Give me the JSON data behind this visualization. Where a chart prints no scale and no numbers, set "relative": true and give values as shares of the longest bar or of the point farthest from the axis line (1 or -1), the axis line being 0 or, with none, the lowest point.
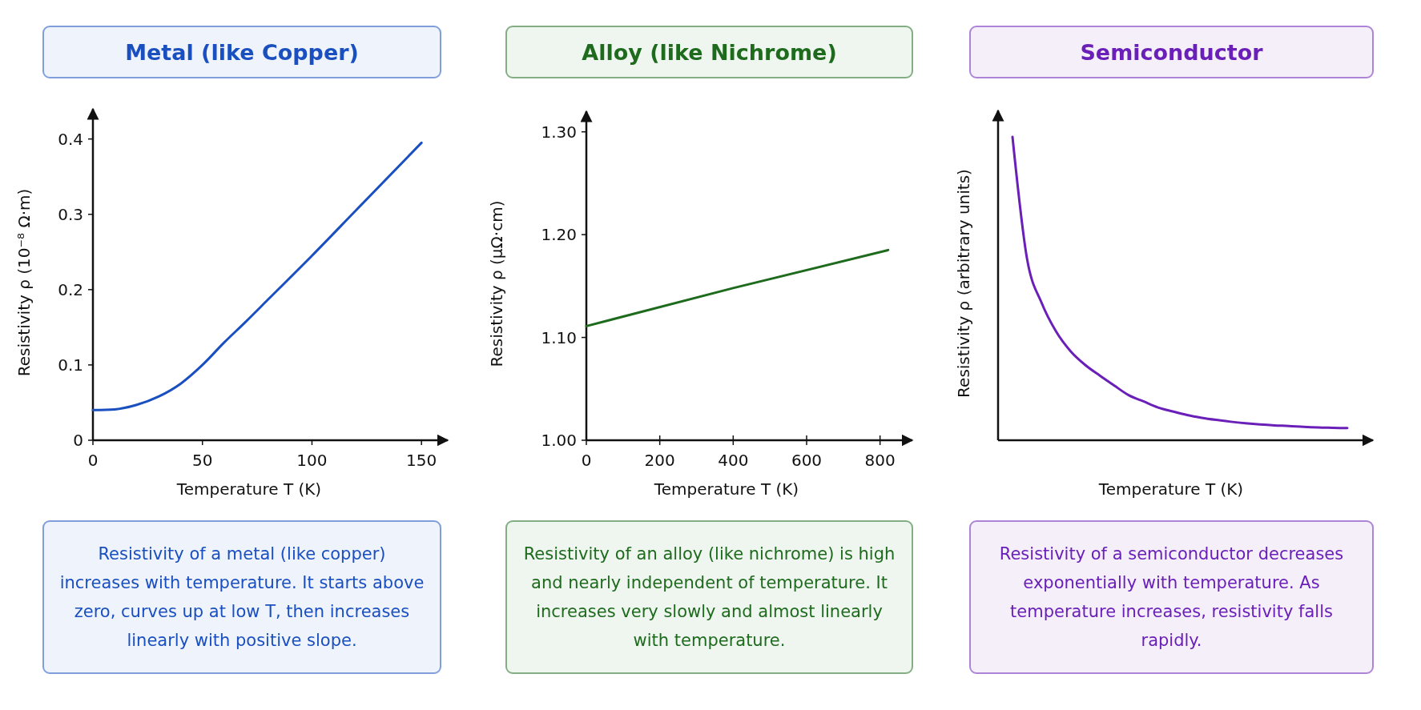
{
  "chart_data": [
    {
      "type": "line",
      "title": "Metal (like Copper)",
      "xlabel": "Temperature  T (K)",
      "ylabel": "Resistivity  ρ (10⁻⁸ Ω·m)",
      "x": [
        0,
        10,
        20,
        30,
        40,
        50,
        60,
        70,
        80,
        100,
        120,
        150
      ],
      "series": [
        {
          "color": "#1a4fc0",
          "values": [
            0.04,
            0.041,
            0.047,
            0.058,
            0.075,
            0.1,
            0.13,
            0.158,
            0.187,
            0.245,
            0.305,
            0.395
          ]
        }
      ],
      "xlim": [
        0,
        162
      ],
      "ylim": [
        0,
        0.44
      ],
      "xticks": [
        0,
        50,
        100,
        150
      ],
      "yticks": [
        0,
        0.1,
        0.2,
        0.3,
        0.4
      ],
      "annotations": [
        "Resistivity of a metal (like copper) increases with temperature. It starts above zero, curves up at low T, then increases linearly with positive slope."
      ]
    },
    {
      "type": "line",
      "title": "Alloy (like Nichrome)",
      "xlabel": "Temperature  T (K)",
      "ylabel": "Resistivity  ρ (μΩ·cm)",
      "x": [
        0,
        400,
        822
      ],
      "series": [
        {
          "color": "#1e6b1e",
          "values": [
            1.111,
            1.148,
            1.185
          ]
        }
      ],
      "xlim": [
        0,
        888
      ],
      "ylim": [
        1.0,
        1.32
      ],
      "xticks": [
        0,
        200,
        400,
        600,
        800
      ],
      "yticks": [
        {
          "value": 1.0,
          "label": "1.00"
        },
        {
          "value": 1.1,
          "label": "1.10"
        },
        {
          "value": 1.2,
          "label": "1.20"
        },
        {
          "value": 1.3,
          "label": "1.30"
        }
      ],
      "annotations": [
        "Resistivity of an alloy (like nichrome) is high and nearly independent of temperature. It increases very slowly and almost linearly with temperature."
      ]
    },
    {
      "type": "line",
      "title": "Semiconductor",
      "xlabel": "Temperature  T (K)",
      "ylabel": "Resistivity ρ (arbitrary units)",
      "relative": true,
      "categories": [
        null,
        null,
        null,
        null,
        null,
        null,
        null,
        null,
        null,
        null,
        null,
        null,
        null,
        null,
        null,
        null,
        null,
        null,
        null,
        null,
        null,
        null,
        null,
        null
      ],
      "series": [
        {
          "color": "#6a1fb8",
          "values": [
            1.0,
            0.598,
            0.453,
            0.358,
            0.293,
            0.248,
            0.213,
            0.18,
            0.148,
            0.128,
            0.108,
            0.095,
            0.083,
            0.074,
            0.067,
            0.061,
            0.056,
            0.052,
            0.049,
            0.047,
            0.044,
            0.042,
            0.041,
            0.04
          ]
        }
      ],
      "annotations": [
        "Resistivity of a semiconductor decreases exponentially with temperature. As temperature increases, resistivity falls rapidly."
      ]
    }
  ]
}
